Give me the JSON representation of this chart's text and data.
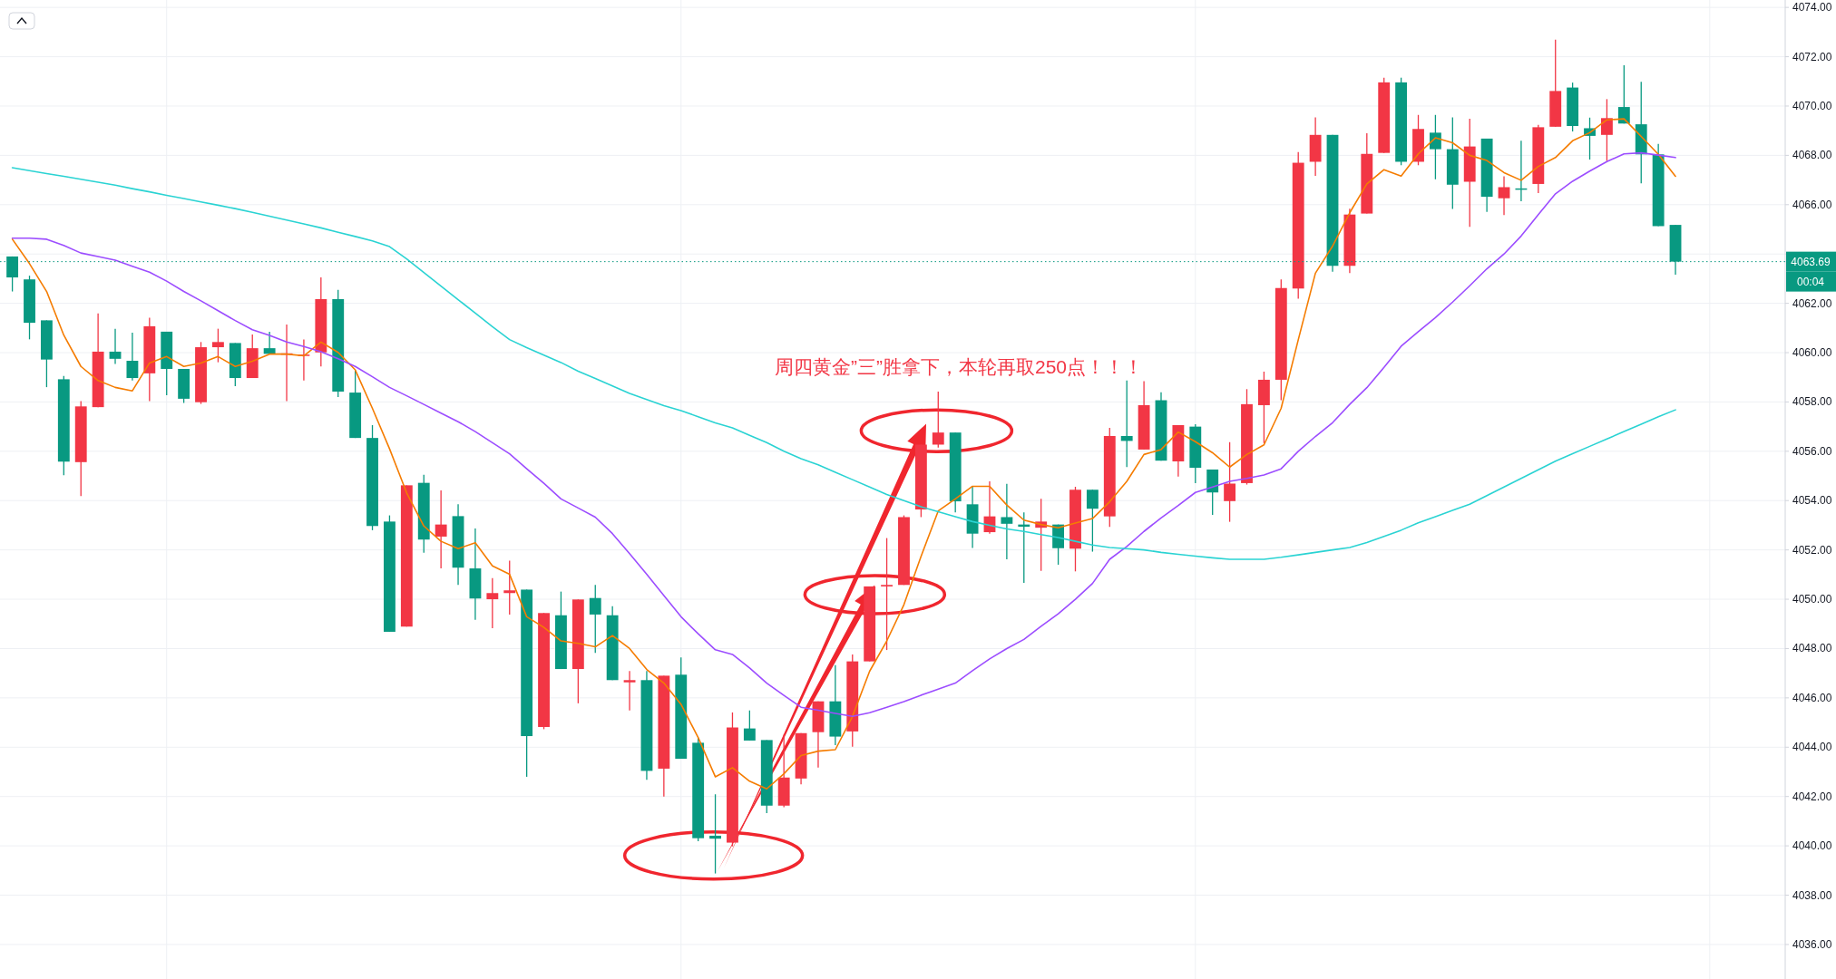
{
  "chart_data": {
    "type": "candlestick",
    "categories": [
      null,
      null,
      null,
      null,
      null,
      null,
      null,
      null,
      null,
      null,
      null,
      null,
      null,
      null,
      null,
      null,
      null,
      null,
      null,
      null,
      null,
      null,
      null,
      null,
      null,
      null,
      null,
      null,
      null,
      null,
      null,
      null,
      null,
      null,
      null,
      null,
      null,
      null,
      null,
      null,
      null,
      null,
      null,
      null,
      null,
      null,
      null,
      null,
      null,
      null,
      null,
      null,
      null,
      null,
      null,
      null,
      null,
      null,
      null,
      null,
      null,
      null,
      null,
      null,
      null,
      null,
      null,
      null,
      null,
      null,
      null,
      null,
      null,
      null,
      null,
      null,
      null,
      null,
      null,
      null,
      null,
      null,
      null,
      null,
      null,
      null,
      null,
      null,
      null,
      null,
      null,
      null,
      null,
      null,
      null,
      null,
      null,
      null
    ],
    "ohlc": [
      [
        4063.9,
        4063.9,
        4062.48,
        4063.05
      ],
      [
        4062.97,
        4063.12,
        4060.54,
        4061.21
      ],
      [
        4061.31,
        4061.31,
        4058.6,
        4059.72
      ],
      [
        4058.92,
        4059.05,
        4055.03,
        4055.58
      ],
      [
        4055.56,
        4058.03,
        4054.18,
        4057.82
      ],
      [
        4057.79,
        4061.59,
        4057.79,
        4060.04
      ],
      [
        4060.04,
        4060.97,
        4059.54,
        4059.75
      ],
      [
        4059.67,
        4060.81,
        4058.87,
        4058.97
      ],
      [
        4059.16,
        4061.42,
        4058.03,
        4061.07
      ],
      [
        4060.85,
        4060.85,
        4058.27,
        4059.34
      ],
      [
        4059.34,
        4059.34,
        4057.96,
        4058.13
      ],
      [
        4057.99,
        4060.43,
        4057.92,
        4060.22
      ],
      [
        4060.22,
        4060.97,
        4059.61,
        4060.43
      ],
      [
        4060.39,
        4060.39,
        4058.64,
        4058.97
      ],
      [
        4058.97,
        4060.74,
        4058.97,
        4060.18
      ],
      [
        4060.18,
        4060.85,
        4059.95,
        4059.95
      ],
      [
        4059.95,
        4061.14,
        4058.03,
        4059.97
      ],
      [
        4059.87,
        4060.53,
        4058.87,
        4059.92
      ],
      [
        4060.01,
        4063.05,
        4059.44,
        4062.17
      ],
      [
        4062.17,
        4062.55,
        4058.2,
        4058.42
      ],
      [
        4058.38,
        4059.3,
        4056.54,
        4056.54
      ],
      [
        4056.54,
        4057.06,
        4052.8,
        4052.97
      ],
      [
        4053.15,
        4053.4,
        4048.68,
        4048.68
      ],
      [
        4048.89,
        4054.62,
        4048.89,
        4054.62
      ],
      [
        4054.72,
        4055.05,
        4051.89,
        4052.42
      ],
      [
        4052.54,
        4054.41,
        4051.25,
        4053.03
      ],
      [
        4053.37,
        4053.85,
        4050.58,
        4051.28
      ],
      [
        4051.25,
        4052.87,
        4049.17,
        4050.03
      ],
      [
        4050.0,
        4050.86,
        4048.83,
        4050.25
      ],
      [
        4050.25,
        4051.56,
        4049.38,
        4050.36
      ],
      [
        4050.39,
        4050.39,
        4042.8,
        4044.45
      ],
      [
        4044.82,
        4049.44,
        4044.73,
        4049.44
      ],
      [
        4049.35,
        4050.31,
        4047.17,
        4047.17
      ],
      [
        4047.17,
        4049.99,
        4045.78,
        4049.99
      ],
      [
        4050.05,
        4050.58,
        4047.82,
        4049.38
      ],
      [
        4049.35,
        4049.72,
        4046.72,
        4046.72
      ],
      [
        4046.63,
        4047.09,
        4045.49,
        4046.72
      ],
      [
        4046.72,
        4047.09,
        4042.68,
        4043.04
      ],
      [
        4043.13,
        4046.9,
        4042.0,
        4046.9
      ],
      [
        4046.94,
        4047.64,
        4043.53,
        4043.53
      ],
      [
        4044.18,
        4044.39,
        4040.19,
        4040.31
      ],
      [
        4040.41,
        4042.09,
        4038.88,
        4040.29
      ],
      [
        4040.13,
        4045.41,
        4039.98,
        4044.8
      ],
      [
        4044.76,
        4045.49,
        4044.27,
        4044.27
      ],
      [
        4044.29,
        4044.29,
        4041.33,
        4041.63
      ],
      [
        4041.63,
        4044.51,
        4041.57,
        4042.77
      ],
      [
        4042.73,
        4044.57,
        4042.49,
        4044.57
      ],
      [
        4044.61,
        4045.86,
        4043.17,
        4045.86
      ],
      [
        4045.86,
        4047.33,
        4044.08,
        4044.43
      ],
      [
        4044.64,
        4047.76,
        4044.02,
        4047.48
      ],
      [
        4047.48,
        4050.52,
        4047.48,
        4050.52
      ],
      [
        4050.52,
        4052.48,
        4047.94,
        4050.58
      ],
      [
        4050.58,
        4053.4,
        4050.58,
        4053.33
      ],
      [
        4053.64,
        4056.27,
        4053.33,
        4056.27
      ],
      [
        4056.27,
        4058.42,
        4056.15,
        4056.76
      ],
      [
        4056.76,
        4056.76,
        4053.52,
        4053.97
      ],
      [
        4053.85,
        4054.56,
        4052.08,
        4052.66
      ],
      [
        4052.72,
        4054.78,
        4052.66,
        4053.36
      ],
      [
        4053.33,
        4054.68,
        4051.62,
        4053.06
      ],
      [
        4053.03,
        4053.52,
        4050.66,
        4052.94
      ],
      [
        4052.9,
        4054.07,
        4051.15,
        4053.15
      ],
      [
        4053.03,
        4053.03,
        4051.4,
        4052.07
      ],
      [
        4052.05,
        4054.56,
        4051.13,
        4054.44
      ],
      [
        4054.44,
        4054.44,
        4051.93,
        4053.67
      ],
      [
        4053.36,
        4056.95,
        4052.93,
        4056.62
      ],
      [
        4056.62,
        4058.87,
        4055.36,
        4056.42
      ],
      [
        4056.07,
        4058.84,
        4056.07,
        4057.87
      ],
      [
        4058.07,
        4058.39,
        4055.62,
        4055.62
      ],
      [
        4055.59,
        4057.06,
        4054.97,
        4057.06
      ],
      [
        4057.0,
        4057.1,
        4054.71,
        4055.33
      ],
      [
        4055.26,
        4055.26,
        4053.42,
        4054.33
      ],
      [
        4053.98,
        4056.37,
        4053.14,
        4054.69
      ],
      [
        4054.71,
        4058.52,
        4054.65,
        4057.91
      ],
      [
        4057.87,
        4059.23,
        4056.33,
        4058.9
      ],
      [
        4058.9,
        4062.97,
        4058.07,
        4062.62
      ],
      [
        4062.6,
        4068.13,
        4062.19,
        4067.7
      ],
      [
        4067.74,
        4069.54,
        4067.17,
        4068.83
      ],
      [
        4068.83,
        4068.83,
        4063.28,
        4063.52
      ],
      [
        4063.52,
        4065.84,
        4063.23,
        4065.6
      ],
      [
        4065.64,
        4068.9,
        4065.64,
        4068.06
      ],
      [
        4068.1,
        4071.15,
        4068.1,
        4070.96
      ],
      [
        4070.96,
        4071.15,
        4067.6,
        4067.74
      ],
      [
        4067.74,
        4069.64,
        4067.6,
        4069.07
      ],
      [
        4068.92,
        4069.64,
        4067.03,
        4068.25
      ],
      [
        4068.25,
        4069.54,
        4065.83,
        4066.81
      ],
      [
        4066.93,
        4069.48,
        4065.1,
        4068.36
      ],
      [
        4068.68,
        4068.68,
        4065.71,
        4066.32
      ],
      [
        4066.26,
        4067.15,
        4065.58,
        4066.71
      ],
      [
        4066.66,
        4068.59,
        4066.14,
        4066.63
      ],
      [
        4066.84,
        4069.24,
        4066.47,
        4069.14
      ],
      [
        4069.16,
        4072.69,
        4069.16,
        4070.61
      ],
      [
        4070.75,
        4070.95,
        4068.97,
        4069.19
      ],
      [
        4069.1,
        4069.53,
        4067.83,
        4068.79
      ],
      [
        4068.83,
        4070.28,
        4067.77,
        4069.51
      ],
      [
        4069.96,
        4071.65,
        4069.29,
        4069.29
      ],
      [
        4069.26,
        4070.98,
        4066.87,
        4068.04
      ],
      [
        4068.04,
        4068.46,
        4065.13,
        4065.13
      ],
      [
        4065.18,
        4065.18,
        4063.16,
        4063.69
      ]
    ],
    "colors": [
      "#089981",
      "#089981",
      "#089981",
      "#089981",
      "#f23645",
      "#f23645",
      "#089981",
      "#089981",
      "#f23645",
      "#089981",
      "#089981",
      "#f23645",
      "#f23645",
      "#089981",
      "#f23645",
      "#089981",
      "#f23645",
      "#f23645",
      "#f23645",
      "#089981",
      "#089981",
      "#089981",
      "#089981",
      "#f23645",
      "#089981",
      "#f23645",
      "#089981",
      "#089981",
      "#f23645",
      "#f23645",
      "#089981",
      "#f23645",
      "#089981",
      "#f23645",
      "#089981",
      "#089981",
      "#f23645",
      "#089981",
      "#f23645",
      "#089981",
      "#089981",
      "#089981",
      "#f23645",
      "#089981",
      "#089981",
      "#f23645",
      "#f23645",
      "#f23645",
      "#089981",
      "#f23645",
      "#f23645",
      "#f23645",
      "#f23645",
      "#f23645",
      "#f23645",
      "#089981",
      "#089981",
      "#f23645",
      "#089981",
      "#089981",
      "#f23645",
      "#089981",
      "#f23645",
      "#089981",
      "#f23645",
      "#089981",
      "#f23645",
      "#089981",
      "#f23645",
      "#089981",
      "#089981",
      "#f23645",
      "#f23645",
      "#f23645",
      "#f23645",
      "#f23645",
      "#f23645",
      "#089981",
      "#f23645",
      "#f23645",
      "#f23645",
      "#089981",
      "#f23645",
      "#089981",
      "#089981",
      "#f23645",
      "#089981",
      "#f23645",
      "#089981",
      "#f23645",
      "#f23645",
      "#089981",
      "#089981",
      "#f23645",
      "#089981",
      "#089981",
      "#089981",
      "#089981"
    ],
    "series": [
      {
        "type": "line",
        "color": "#f57c00",
        "values": [
          4064.6,
          4063.61,
          4062.48,
          4060.71,
          4059.44,
          4058.87,
          4058.59,
          4058.45,
          4059.58,
          4059.84,
          4059.44,
          4059.58,
          4059.84,
          4059.44,
          4059.65,
          4059.94,
          4059.94,
          4059.87,
          4060.43,
          4060.01,
          4059.3,
          4057.74,
          4056.1,
          4054.31,
          4052.97,
          4052.35,
          4052.05,
          4052.29,
          4051.35,
          4051.01,
          4049.29,
          4048.86,
          4048.31,
          4048.21,
          4048.07,
          4048.53,
          4048.0,
          4047.15,
          4046.6,
          4045.74,
          4044.39,
          4042.8,
          4043.17,
          4042.62,
          4042.31,
          4042.92,
          4043.66,
          4043.84,
          4043.9,
          4045.25,
          4047.08,
          4048.31,
          4049.78,
          4051.74,
          4053.58,
          4054.07,
          4054.58,
          4054.58,
          4053.82,
          4053.21,
          4053.03,
          4052.9,
          4053.09,
          4053.27,
          4053.95,
          4054.78,
          4055.87,
          4056.07,
          4056.78,
          4056.39,
          4055.94,
          4055.36,
          4055.87,
          4056.26,
          4057.74,
          4060.52,
          4063.22,
          4064.32,
          4065.67,
          4066.84,
          4067.42,
          4067.16,
          4068.06,
          4068.71,
          4068.51,
          4068.0,
          4067.79,
          4067.3,
          4066.99,
          4067.55,
          4067.91,
          4068.59,
          4068.92,
          4069.44,
          4069.48,
          4068.77,
          4068.04,
          4067.15
        ]
      },
      {
        "type": "line",
        "color": "#9c4dff",
        "values": [
          4064.64,
          4064.64,
          4064.6,
          4064.35,
          4064.04,
          4063.9,
          4063.75,
          4063.5,
          4063.26,
          4062.9,
          4062.48,
          4062.1,
          4061.7,
          4061.3,
          4060.93,
          4060.7,
          4060.43,
          4060.25,
          4060.04,
          4059.75,
          4059.44,
          4059.02,
          4058.59,
          4058.25,
          4057.9,
          4057.55,
          4057.2,
          4056.8,
          4056.35,
          4055.9,
          4055.29,
          4054.7,
          4054.07,
          4053.7,
          4053.33,
          4052.66,
          4051.85,
          4051.01,
          4050.15,
          4049.29,
          4048.6,
          4047.95,
          4047.76,
          4047.21,
          4046.6,
          4046.1,
          4045.62,
          4045.5,
          4045.37,
          4045.25,
          4045.4,
          4045.62,
          4045.85,
          4046.11,
          4046.35,
          4046.6,
          4047.1,
          4047.58,
          4048.0,
          4048.37,
          4048.9,
          4049.41,
          4050.0,
          4050.64,
          4051.62,
          4052.14,
          4052.75,
          4053.3,
          4053.8,
          4054.33,
          4054.55,
          4054.78,
          4054.9,
          4055.04,
          4055.29,
          4056.0,
          4056.6,
          4057.16,
          4057.9,
          4058.58,
          4059.4,
          4060.26,
          4060.85,
          4061.42,
          4062.05,
          4062.71,
          4063.4,
          4064.0,
          4064.73,
          4065.6,
          4066.44,
          4066.95,
          4067.36,
          4067.75,
          4068.06,
          4068.1,
          4068.01,
          4067.91
        ]
      },
      {
        "type": "line",
        "color": "#2ad3d3",
        "values": [
          4067.5,
          4067.38,
          4067.26,
          4067.15,
          4067.03,
          4066.91,
          4066.79,
          4066.65,
          4066.52,
          4066.38,
          4066.25,
          4066.11,
          4065.98,
          4065.84,
          4065.69,
          4065.53,
          4065.38,
          4065.22,
          4065.06,
          4064.88,
          4064.71,
          4064.53,
          4064.3,
          4063.8,
          4063.25,
          4062.7,
          4062.15,
          4061.6,
          4061.05,
          4060.53,
          4060.2,
          4059.9,
          4059.6,
          4059.25,
          4058.95,
          4058.65,
          4058.35,
          4058.1,
          4057.85,
          4057.65,
          4057.4,
          4057.15,
          4056.95,
          4056.65,
          4056.35,
          4056.0,
          4055.7,
          4055.45,
          4055.15,
          4054.85,
          4054.55,
          4054.25,
          4054.0,
          4053.75,
          4053.55,
          4053.35,
          4053.15,
          4053.0,
          4052.85,
          4052.75,
          4052.62,
          4052.5,
          4052.35,
          4052.2,
          4052.1,
          4052.05,
          4052.0,
          4051.9,
          4051.82,
          4051.75,
          4051.68,
          4051.62,
          4051.62,
          4051.62,
          4051.7,
          4051.8,
          4051.9,
          4052.0,
          4052.1,
          4052.3,
          4052.55,
          4052.8,
          4053.1,
          4053.35,
          4053.6,
          4053.85,
          4054.2,
          4054.55,
          4054.9,
          4055.25,
          4055.6,
          4055.9,
          4056.2,
          4056.5,
          4056.8,
          4057.1,
          4057.4,
          4057.68
        ]
      }
    ],
    "ylim": [
      4034.6,
      4074.3
    ],
    "yticks": [
      {
        "value": 4036,
        "label": "4036.00"
      },
      {
        "value": 4038,
        "label": "4038.00"
      },
      {
        "value": 4040,
        "label": "4040.00"
      },
      {
        "value": 4042,
        "label": "4042.00"
      },
      {
        "value": 4044,
        "label": "4044.00"
      },
      {
        "value": 4046,
        "label": "4046.00"
      },
      {
        "value": 4048,
        "label": "4048.00"
      },
      {
        "value": 4050,
        "label": "4050.00"
      },
      {
        "value": 4052,
        "label": "4052.00"
      },
      {
        "value": 4054,
        "label": "4054.00"
      },
      {
        "value": 4056,
        "label": "4056.00"
      },
      {
        "value": 4058,
        "label": "4058.00"
      },
      {
        "value": 4060,
        "label": "4060.00"
      },
      {
        "value": 4062,
        "label": "4062.00"
      },
      {
        "value": 4064,
        "label": null
      },
      {
        "value": 4066,
        "label": "4066.00"
      },
      {
        "value": 4068,
        "label": "4068.00"
      },
      {
        "value": 4070,
        "label": "4070.00"
      },
      {
        "value": 4072,
        "label": "4072.00"
      },
      {
        "value": 4074,
        "label": "4074.00"
      }
    ],
    "tick_labels": "y",
    "grid": true,
    "ref_lines": [
      {
        "axis": "y",
        "value": 4063.69,
        "label": "4063.69",
        "color": "#089981",
        "line_style": "dotted"
      }
    ],
    "annotations": [
      "周四黄金”三”胜拿下，本轮再取250点！！！",
      "00:04"
    ]
  }
}
